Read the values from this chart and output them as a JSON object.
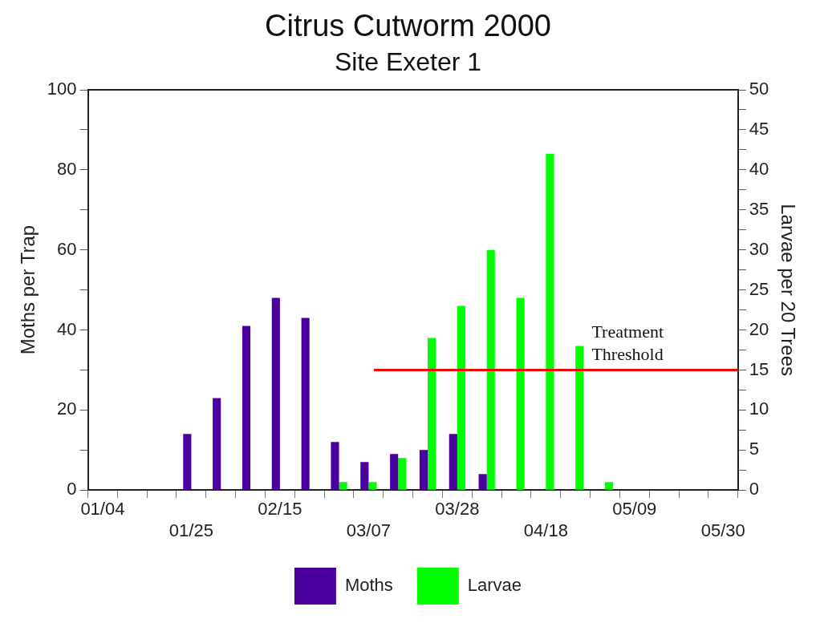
{
  "chart_data": {
    "type": "bar",
    "title": "Citrus Cutworm 2000",
    "subtitle": "Site Exeter 1",
    "ylabel": "Moths per Trap",
    "y2label": "Larvae per 20 Trees",
    "categories": [
      "01/04",
      null,
      null,
      "01/25",
      null,
      null,
      "02/15",
      null,
      null,
      "03/07",
      null,
      null,
      "03/28",
      null,
      null,
      "04/18",
      null,
      null,
      "05/09",
      null,
      null,
      "05/30"
    ],
    "series": [
      {
        "name": "Moths",
        "color": "#4b00a0",
        "values": [
          null,
          null,
          null,
          14,
          23,
          41,
          48,
          43,
          12,
          7,
          9,
          10,
          14,
          4,
          null,
          null,
          null,
          null,
          null,
          null,
          null,
          null
        ]
      },
      {
        "name": "Larvae",
        "color": "#00ff00",
        "axis": "y2",
        "values": [
          null,
          null,
          null,
          null,
          null,
          null,
          null,
          null,
          1,
          1,
          4,
          19,
          23,
          30,
          24,
          42,
          18,
          1,
          null,
          null,
          null,
          null
        ]
      }
    ],
    "ylim": [
      0,
      100
    ],
    "yticks": [
      0,
      {
        "value": 10,
        "label": null
      },
      20,
      {
        "value": 30,
        "label": null
      },
      40,
      {
        "value": 50,
        "label": null
      },
      60,
      {
        "value": 70,
        "label": null
      },
      80,
      {
        "value": 90,
        "label": null
      },
      100
    ],
    "y2lim": [
      0,
      50
    ],
    "y2ticks": [
      0,
      {
        "value": 2.5,
        "label": null
      },
      5,
      {
        "value": 7.5,
        "label": null
      },
      10,
      {
        "value": 12.5,
        "label": null
      },
      15,
      {
        "value": 17.5,
        "label": null
      },
      20,
      {
        "value": 22.5,
        "label": null
      },
      25,
      {
        "value": 27.5,
        "label": null
      },
      30,
      {
        "value": 32.5,
        "label": null
      },
      35,
      {
        "value": 37.5,
        "label": null
      },
      40,
      {
        "value": 42.5,
        "label": null
      },
      45,
      {
        "value": 47.5,
        "label": null
      },
      50
    ],
    "ref_lines": [
      {
        "axis": "y2",
        "value": 15,
        "label": "Treatment Threshold",
        "color": "#ff0000"
      }
    ],
    "grid": false,
    "legend": "bottom"
  }
}
